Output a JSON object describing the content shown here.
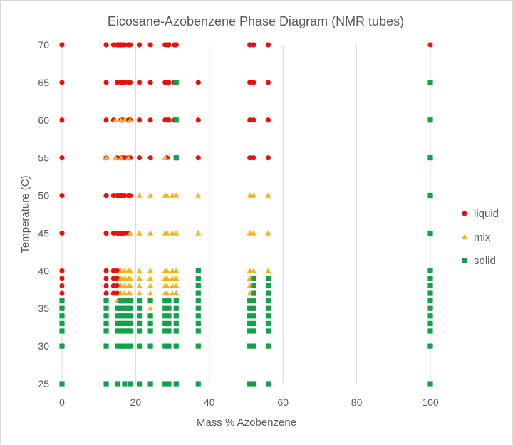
{
  "chart_data": {
    "type": "scatter",
    "title": "Eicosane-Azobenzene  Phase Diagram (NMR tubes)",
    "xlabel": "Mass % Azobenzene",
    "ylabel": "Temperature (C)",
    "xlim": [
      0,
      100
    ],
    "ylim": [
      25,
      70
    ],
    "xticks": [
      0,
      20,
      40,
      60,
      80,
      100
    ],
    "yticks": [
      25,
      30,
      35,
      40,
      45,
      50,
      55,
      60,
      65,
      70
    ],
    "grid": "vertical",
    "legend_position": "right",
    "series": [
      {
        "name": "liquid",
        "marker": "circle",
        "color": "#e8120c",
        "points": [
          [
            0,
            70
          ],
          [
            12,
            70
          ],
          [
            14,
            70
          ],
          [
            15,
            70
          ],
          [
            15.5,
            70
          ],
          [
            16,
            70
          ],
          [
            16.5,
            70
          ],
          [
            17,
            70
          ],
          [
            18,
            70
          ],
          [
            18.5,
            70
          ],
          [
            21,
            70
          ],
          [
            24,
            70
          ],
          [
            28,
            70
          ],
          [
            28.5,
            70
          ],
          [
            29,
            70
          ],
          [
            30.5,
            70
          ],
          [
            31,
            70
          ],
          [
            51,
            70
          ],
          [
            52,
            70
          ],
          [
            56,
            70
          ],
          [
            100,
            70
          ],
          [
            0,
            65
          ],
          [
            12,
            65
          ],
          [
            15,
            65
          ],
          [
            16,
            65
          ],
          [
            16.5,
            65
          ],
          [
            17,
            65
          ],
          [
            18,
            65
          ],
          [
            18.5,
            65
          ],
          [
            21,
            65
          ],
          [
            24,
            65
          ],
          [
            28,
            65
          ],
          [
            28.5,
            65
          ],
          [
            29,
            65
          ],
          [
            30.5,
            65
          ],
          [
            37,
            65
          ],
          [
            51,
            65
          ],
          [
            52,
            65
          ],
          [
            56,
            65
          ],
          [
            0,
            60
          ],
          [
            12,
            60
          ],
          [
            14,
            60
          ],
          [
            16,
            60
          ],
          [
            16.5,
            60
          ],
          [
            18,
            60
          ],
          [
            18.5,
            60
          ],
          [
            21,
            60
          ],
          [
            24,
            60
          ],
          [
            28,
            60
          ],
          [
            28.5,
            60
          ],
          [
            29,
            60
          ],
          [
            30.5,
            60
          ],
          [
            37,
            60
          ],
          [
            51,
            60
          ],
          [
            52,
            60
          ],
          [
            56,
            60
          ],
          [
            0,
            55
          ],
          [
            12,
            55
          ],
          [
            15,
            55
          ],
          [
            16,
            55
          ],
          [
            16.5,
            55
          ],
          [
            17,
            55
          ],
          [
            18,
            55
          ],
          [
            18.5,
            55
          ],
          [
            21,
            55
          ],
          [
            24,
            55
          ],
          [
            28.5,
            55
          ],
          [
            31,
            55
          ],
          [
            37,
            55
          ],
          [
            51,
            55
          ],
          [
            52,
            55
          ],
          [
            56,
            55
          ],
          [
            0,
            50
          ],
          [
            12,
            50
          ],
          [
            14,
            50
          ],
          [
            15,
            50
          ],
          [
            15.5,
            50
          ],
          [
            16,
            50
          ],
          [
            16.5,
            50
          ],
          [
            17,
            50
          ],
          [
            18,
            50
          ],
          [
            18.5,
            50
          ],
          [
            0,
            45
          ],
          [
            12,
            45
          ],
          [
            14,
            45
          ],
          [
            15,
            45
          ],
          [
            15.5,
            45
          ],
          [
            16,
            45
          ],
          [
            16.5,
            45
          ],
          [
            17,
            45
          ],
          [
            18,
            45
          ],
          [
            0,
            40
          ],
          [
            12,
            40
          ],
          [
            14,
            40
          ],
          [
            15,
            40
          ],
          [
            0,
            39
          ],
          [
            12,
            39
          ],
          [
            14,
            39
          ],
          [
            15,
            39
          ],
          [
            0,
            38
          ],
          [
            12,
            38
          ],
          [
            14,
            38
          ],
          [
            15,
            38
          ],
          [
            0,
            37
          ],
          [
            12,
            37
          ],
          [
            14,
            37
          ],
          [
            15,
            37
          ]
        ]
      },
      {
        "name": "mix",
        "marker": "triangle",
        "color": "#f5b21f",
        "points": [
          [
            14.5,
            60
          ],
          [
            16,
            60
          ],
          [
            17,
            60
          ],
          [
            18.5,
            60
          ],
          [
            12,
            55
          ],
          [
            14.5,
            55
          ],
          [
            16,
            55
          ],
          [
            18,
            55
          ],
          [
            28,
            55
          ],
          [
            21,
            50
          ],
          [
            24,
            50
          ],
          [
            28,
            50
          ],
          [
            28.5,
            50
          ],
          [
            30,
            50
          ],
          [
            31,
            50
          ],
          [
            37,
            50
          ],
          [
            51,
            50
          ],
          [
            52,
            50
          ],
          [
            56,
            50
          ],
          [
            18.5,
            45
          ],
          [
            21,
            45
          ],
          [
            24,
            45
          ],
          [
            28,
            45
          ],
          [
            28.5,
            45
          ],
          [
            30,
            45
          ],
          [
            31,
            45
          ],
          [
            37,
            45
          ],
          [
            51,
            45
          ],
          [
            52,
            45
          ],
          [
            56,
            45
          ],
          [
            16,
            40
          ],
          [
            17,
            40
          ],
          [
            18,
            40
          ],
          [
            18.5,
            40
          ],
          [
            21,
            40
          ],
          [
            24,
            40
          ],
          [
            28,
            40
          ],
          [
            28.5,
            40
          ],
          [
            30,
            40
          ],
          [
            31,
            40
          ],
          [
            51,
            40
          ],
          [
            52,
            40
          ],
          [
            56,
            40
          ],
          [
            16,
            39
          ],
          [
            17,
            39
          ],
          [
            18,
            39
          ],
          [
            18.5,
            39
          ],
          [
            21,
            39
          ],
          [
            24,
            39
          ],
          [
            28,
            39
          ],
          [
            28.5,
            39
          ],
          [
            30,
            39
          ],
          [
            31,
            39
          ],
          [
            51,
            39
          ],
          [
            16,
            38
          ],
          [
            17,
            38
          ],
          [
            18,
            38
          ],
          [
            18.5,
            38
          ],
          [
            21,
            38
          ],
          [
            24,
            38
          ],
          [
            28,
            38
          ],
          [
            28.5,
            38
          ],
          [
            30,
            38
          ],
          [
            31,
            38
          ],
          [
            51,
            38
          ],
          [
            16,
            37
          ],
          [
            17,
            37
          ],
          [
            18,
            37
          ],
          [
            18.5,
            37
          ],
          [
            21,
            37
          ],
          [
            24,
            37
          ],
          [
            28,
            37
          ],
          [
            28.5,
            37
          ],
          [
            30,
            37
          ],
          [
            31,
            37
          ],
          [
            51,
            37
          ],
          [
            15,
            36
          ],
          [
            28.5,
            36
          ],
          [
            24,
            35
          ],
          [
            28.5,
            32
          ]
        ]
      },
      {
        "name": "solid",
        "marker": "square",
        "color": "#12a14b",
        "points": [
          [
            31,
            65
          ],
          [
            31,
            60
          ],
          [
            31,
            55
          ],
          [
            37,
            40
          ],
          [
            37,
            39
          ],
          [
            37,
            38
          ],
          [
            37,
            37
          ],
          [
            52,
            39
          ],
          [
            56,
            39
          ],
          [
            52,
            38
          ],
          [
            56,
            38
          ],
          [
            52,
            37
          ],
          [
            56,
            37
          ],
          [
            0,
            25
          ],
          [
            12,
            25
          ],
          [
            15,
            25
          ],
          [
            17,
            25
          ],
          [
            18.5,
            25
          ],
          [
            21,
            25
          ],
          [
            24,
            25
          ],
          [
            28,
            25
          ],
          [
            29,
            25
          ],
          [
            31,
            25
          ],
          [
            37,
            25
          ],
          [
            51,
            25
          ],
          [
            52,
            25
          ],
          [
            56,
            25
          ],
          [
            100,
            25
          ],
          [
            0,
            30
          ],
          [
            12,
            30
          ],
          [
            15,
            30
          ],
          [
            16,
            30
          ],
          [
            16.5,
            30
          ],
          [
            17,
            30
          ],
          [
            18,
            30
          ],
          [
            18.5,
            30
          ],
          [
            21,
            30
          ],
          [
            24,
            30
          ],
          [
            28,
            30
          ],
          [
            29,
            30
          ],
          [
            31,
            30
          ],
          [
            37,
            30
          ],
          [
            51,
            30
          ],
          [
            52,
            30
          ],
          [
            56,
            30
          ],
          [
            100,
            30
          ],
          [
            0,
            32
          ],
          [
            12,
            32
          ],
          [
            15,
            32
          ],
          [
            16,
            32
          ],
          [
            16.5,
            32
          ],
          [
            17,
            32
          ],
          [
            18,
            32
          ],
          [
            18.5,
            32
          ],
          [
            21,
            32
          ],
          [
            24,
            32
          ],
          [
            28,
            32
          ],
          [
            29,
            32
          ],
          [
            31,
            32
          ],
          [
            37,
            32
          ],
          [
            51,
            32
          ],
          [
            52,
            32
          ],
          [
            56,
            32
          ],
          [
            100,
            32
          ],
          [
            0,
            33
          ],
          [
            12,
            33
          ],
          [
            15,
            33
          ],
          [
            16,
            33
          ],
          [
            16.5,
            33
          ],
          [
            17,
            33
          ],
          [
            18,
            33
          ],
          [
            18.5,
            33
          ],
          [
            21,
            33
          ],
          [
            24,
            33
          ],
          [
            28,
            33
          ],
          [
            29,
            33
          ],
          [
            31,
            33
          ],
          [
            37,
            33
          ],
          [
            51,
            33
          ],
          [
            52,
            33
          ],
          [
            56,
            33
          ],
          [
            100,
            33
          ],
          [
            0,
            34
          ],
          [
            12,
            34
          ],
          [
            15,
            34
          ],
          [
            16,
            34
          ],
          [
            16.5,
            34
          ],
          [
            17,
            34
          ],
          [
            18,
            34
          ],
          [
            18.5,
            34
          ],
          [
            21,
            34
          ],
          [
            24,
            34
          ],
          [
            28,
            34
          ],
          [
            29,
            34
          ],
          [
            31,
            34
          ],
          [
            37,
            34
          ],
          [
            51,
            34
          ],
          [
            52,
            34
          ],
          [
            56,
            34
          ],
          [
            100,
            34
          ],
          [
            0,
            35
          ],
          [
            12,
            35
          ],
          [
            15,
            35
          ],
          [
            16,
            35
          ],
          [
            16.5,
            35
          ],
          [
            17,
            35
          ],
          [
            18,
            35
          ],
          [
            18.5,
            35
          ],
          [
            21,
            35
          ],
          [
            28,
            35
          ],
          [
            29,
            35
          ],
          [
            31,
            35
          ],
          [
            37,
            35
          ],
          [
            51,
            35
          ],
          [
            52,
            35
          ],
          [
            56,
            35
          ],
          [
            100,
            35
          ],
          [
            0,
            36
          ],
          [
            12,
            36
          ],
          [
            16,
            36
          ],
          [
            16.5,
            36
          ],
          [
            17,
            36
          ],
          [
            18,
            36
          ],
          [
            18.5,
            36
          ],
          [
            21,
            36
          ],
          [
            24,
            36
          ],
          [
            28,
            36
          ],
          [
            29,
            36
          ],
          [
            31,
            36
          ],
          [
            37,
            36
          ],
          [
            51,
            36
          ],
          [
            52,
            36
          ],
          [
            56,
            36
          ],
          [
            100,
            36
          ],
          [
            100,
            37
          ],
          [
            100,
            38
          ],
          [
            100,
            39
          ],
          [
            100,
            40
          ],
          [
            100,
            45
          ],
          [
            100,
            50
          ],
          [
            100,
            55
          ],
          [
            100,
            60
          ],
          [
            100,
            65
          ]
        ]
      }
    ]
  }
}
